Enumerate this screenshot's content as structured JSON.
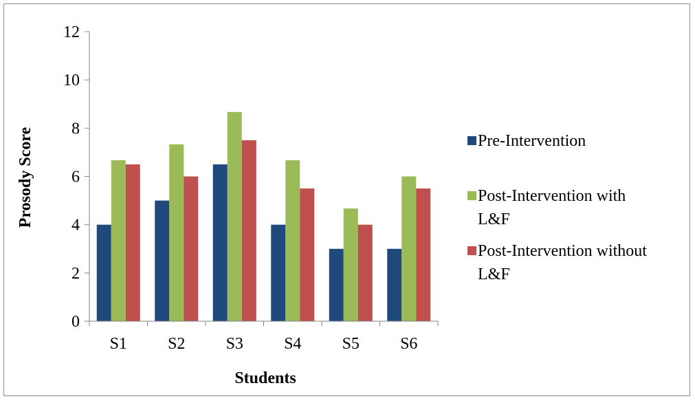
{
  "chart_data": {
    "type": "bar",
    "title": "",
    "xlabel": "Students",
    "ylabel": "Prosody Score",
    "categories": [
      "S1",
      "S2",
      "S3",
      "S4",
      "S5",
      "S6"
    ],
    "ylim": [
      0,
      12
    ],
    "yticks": [
      0,
      2,
      4,
      6,
      8,
      10,
      12
    ],
    "grid": false,
    "legend_position": "right",
    "series": [
      {
        "name": "Pre-Intervention",
        "legend_lines": [
          "Pre-Intervention"
        ],
        "color": "#1F497D",
        "values": [
          4,
          5,
          6.5,
          4,
          3,
          3
        ]
      },
      {
        "name": "Post-Intervention with L&F",
        "legend_lines": [
          "Post-Intervention with",
          "L&F"
        ],
        "color": "#9BBB59",
        "values": [
          6.67,
          7.33,
          8.67,
          6.67,
          4.67,
          6
        ]
      },
      {
        "name": "Post-Intervention without L&F",
        "legend_lines": [
          "Post-Intervention without",
          "L&F"
        ],
        "color": "#C0504D",
        "values": [
          6.5,
          6,
          7.5,
          5.5,
          4,
          5.5
        ]
      }
    ]
  }
}
